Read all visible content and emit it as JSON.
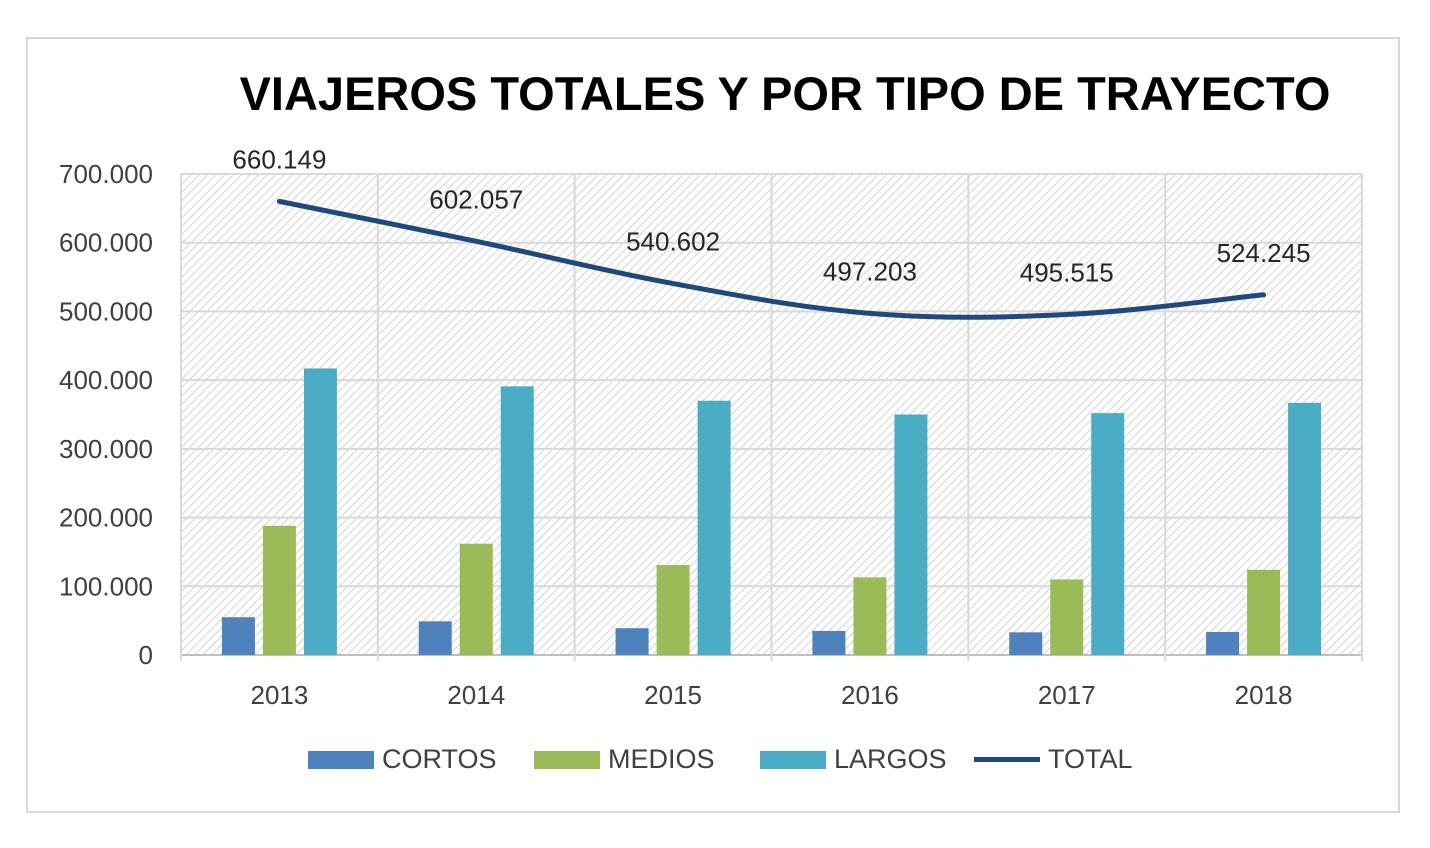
{
  "chart_data": {
    "type": "bar",
    "title": "VIAJEROS TOTALES Y POR TIPO DE TRAYECTO",
    "categories": [
      "2013",
      "2014",
      "2015",
      "2016",
      "2017",
      "2018"
    ],
    "series": [
      {
        "name": "CORTOS",
        "kind": "bar",
        "color": "#4f81bd",
        "values": [
          55000,
          49000,
          39000,
          35000,
          33000,
          33500
        ]
      },
      {
        "name": "MEDIOS",
        "kind": "bar",
        "color": "#9bbb59",
        "values": [
          188000,
          162000,
          131000,
          113000,
          110000,
          124000
        ]
      },
      {
        "name": "LARGOS",
        "kind": "bar",
        "color": "#4bacc6",
        "values": [
          417000,
          391000,
          370000,
          350000,
          352000,
          367000
        ]
      },
      {
        "name": "TOTAL",
        "kind": "line",
        "color": "#1f497d",
        "values": [
          660149,
          602057,
          540602,
          497203,
          495515,
          524245
        ],
        "labels": [
          "660.149",
          "602.057",
          "540.602",
          "497.203",
          "495.515",
          "524.245"
        ]
      }
    ],
    "yticks": [
      "0",
      "100.000",
      "200.000",
      "300.000",
      "400.000",
      "500.000",
      "600.000",
      "700.000"
    ],
    "ylim": [
      0,
      700000
    ],
    "xlabel": "",
    "ylabel": "",
    "grid": true,
    "legend": "bottom"
  }
}
